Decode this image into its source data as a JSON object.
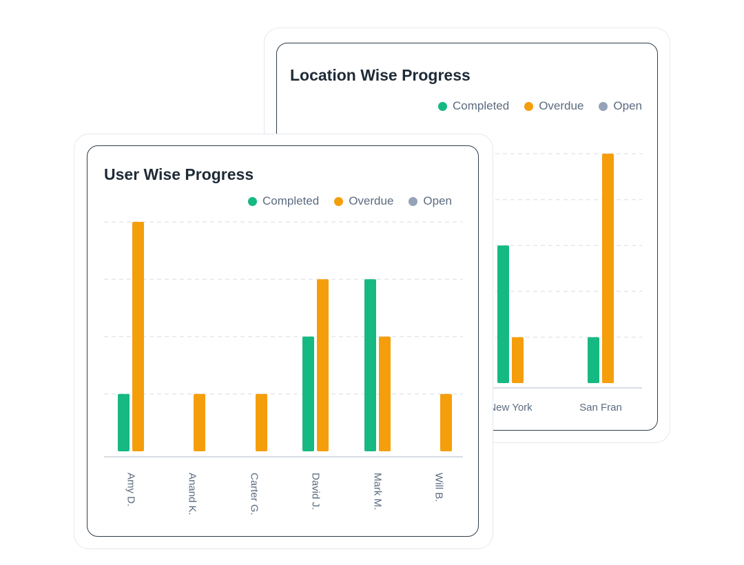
{
  "colors": {
    "completed": "#16b981",
    "overdue": "#f59e0b",
    "open": "#94a3b8",
    "grid": "#e3e8ee",
    "axis": "#d8dde3"
  },
  "legend": {
    "completed": "Completed",
    "overdue": "Overdue",
    "open": "Open"
  },
  "chart_data": [
    {
      "type": "bar",
      "title": "Location Wise Progress",
      "categories": [
        "New York",
        "San Fran"
      ],
      "series": [
        {
          "name": "Completed",
          "values": [
            3,
            1
          ]
        },
        {
          "name": "Overdue",
          "values": [
            1,
            5
          ]
        },
        {
          "name": "Open",
          "values": [
            0,
            0
          ]
        }
      ],
      "ylim": [
        0,
        5
      ],
      "grid": true,
      "legend": "top-right",
      "xlabel": "",
      "ylabel": ""
    },
    {
      "type": "bar",
      "title": "User Wise Progress",
      "categories": [
        "Amy D.",
        "Anand K.",
        "Carter G.",
        "David J.",
        "Mark M.",
        "Will B."
      ],
      "series": [
        {
          "name": "Completed",
          "values": [
            1,
            0,
            0,
            2,
            3,
            0
          ]
        },
        {
          "name": "Overdue",
          "values": [
            4,
            1,
            1,
            3,
            2,
            1
          ]
        },
        {
          "name": "Open",
          "values": [
            0,
            0,
            0,
            0,
            0,
            0
          ]
        }
      ],
      "ylim": [
        0,
        4
      ],
      "grid": true,
      "legend": "top-right",
      "xlabel": "",
      "ylabel": ""
    }
  ]
}
